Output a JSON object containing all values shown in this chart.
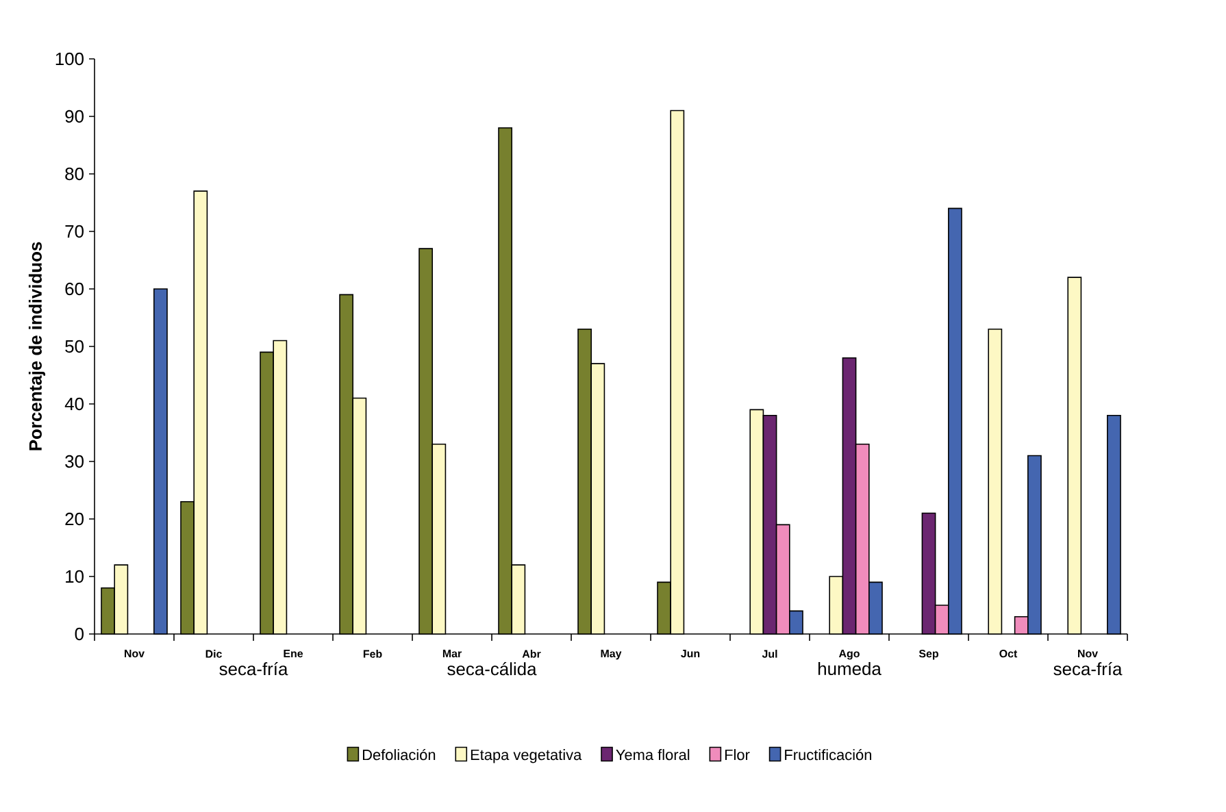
{
  "chart_data": {
    "type": "bar",
    "ylabel": "Porcentaje de individuos",
    "categories": [
      "Nov",
      "Dic",
      "Ene",
      "Feb",
      "Mar",
      "Abr",
      "May",
      "Jun",
      "Jul",
      "Ago",
      "Sep",
      "Oct",
      "Nov"
    ],
    "series": [
      {
        "name": "Defoliación",
        "color": "#77802e",
        "values": [
          8,
          23,
          49,
          59,
          67,
          88,
          53,
          9,
          null,
          null,
          null,
          null,
          null
        ]
      },
      {
        "name": "Etapa vegetativa",
        "color": "#fdf8c4",
        "values": [
          12,
          77,
          51,
          41,
          33,
          12,
          47,
          91,
          39,
          10,
          null,
          53,
          62
        ]
      },
      {
        "name": "Yema floral",
        "color": "#6b2670",
        "values": [
          null,
          null,
          null,
          null,
          null,
          null,
          null,
          null,
          38,
          48,
          21,
          null,
          null
        ]
      },
      {
        "name": "Flor",
        "color": "#f08cbc",
        "values": [
          null,
          null,
          null,
          null,
          null,
          null,
          null,
          null,
          19,
          33,
          5,
          3,
          null
        ]
      },
      {
        "name": "Fructificación",
        "color": "#4466b0",
        "values": [
          60,
          null,
          null,
          null,
          null,
          null,
          null,
          null,
          4,
          9,
          74,
          31,
          38
        ]
      }
    ],
    "ylim": [
      0,
      100
    ],
    "yticks": [
      0,
      10,
      20,
      30,
      40,
      50,
      60,
      70,
      80,
      90,
      100
    ],
    "annotations": [
      "seca-fría",
      "seca-cálida",
      "humeda",
      "seca-fría"
    ],
    "legend": "bottom",
    "grid": false
  }
}
